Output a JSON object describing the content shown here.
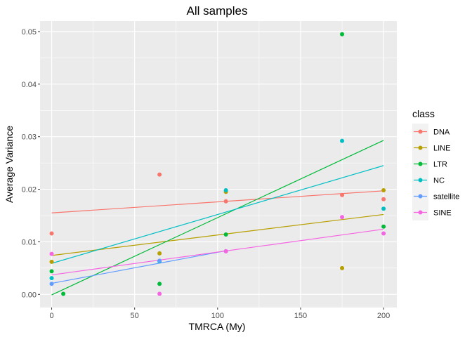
{
  "chart_data": {
    "type": "scatter",
    "title": "All samples",
    "xlabel": "TMRCA (My)",
    "ylabel": "Average Variance",
    "xlim": [
      -7,
      208
    ],
    "ylim": [
      -0.0025,
      0.052
    ],
    "x_ticks": [
      0,
      50,
      100,
      150,
      200
    ],
    "x_tick_labels": [
      "0",
      "50",
      "100",
      "150",
      "200"
    ],
    "y_ticks": [
      0.0,
      0.01,
      0.02,
      0.03,
      0.04,
      0.05
    ],
    "y_tick_labels": [
      "0.00",
      "0.01",
      "0.02",
      "0.03",
      "0.04",
      "0.05"
    ],
    "grid": true,
    "legend": {
      "title": "class",
      "position": "right"
    },
    "series": [
      {
        "name": "DNA",
        "color": "#F8766D",
        "points": [
          [
            0,
            0.0116
          ],
          [
            65,
            0.0228
          ],
          [
            105,
            0.0177
          ],
          [
            175,
            0.0189
          ],
          [
            200,
            0.0181
          ]
        ],
        "trend": [
          [
            0,
            0.0155
          ],
          [
            200,
            0.0197
          ]
        ]
      },
      {
        "name": "LINE",
        "color": "#B79F00",
        "points": [
          [
            0,
            0.0062
          ],
          [
            65,
            0.0078
          ],
          [
            105,
            0.0195
          ],
          [
            175,
            0.005
          ],
          [
            200,
            0.0198
          ]
        ],
        "trend": [
          [
            0,
            0.0074
          ],
          [
            200,
            0.0152
          ]
        ]
      },
      {
        "name": "LTR",
        "color": "#00BA38",
        "points": [
          [
            0,
            0.0044
          ],
          [
            7,
            0.0001
          ],
          [
            65,
            0.002
          ],
          [
            105,
            0.0114
          ],
          [
            175,
            0.0495
          ],
          [
            200,
            0.0129
          ]
        ],
        "trend": [
          [
            0,
            -0.0001
          ],
          [
            200,
            0.0293
          ]
        ]
      },
      {
        "name": "NC",
        "color": "#00BFC4",
        "points": [
          [
            0,
            0.0031
          ],
          [
            65,
            0.0063
          ],
          [
            105,
            0.0198
          ],
          [
            175,
            0.0292
          ],
          [
            200,
            0.0163
          ]
        ],
        "trend": [
          [
            0,
            0.0059
          ],
          [
            200,
            0.0245
          ]
        ]
      },
      {
        "name": "satellite",
        "color": "#619CFF",
        "points": [
          [
            0,
            0.002
          ],
          [
            65,
            0.0064
          ],
          [
            105,
            0.0082
          ]
        ],
        "trend": [
          [
            0,
            0.0021
          ],
          [
            105,
            0.0083
          ]
        ]
      },
      {
        "name": "SINE",
        "color": "#F564E3",
        "points": [
          [
            0,
            0.0077
          ],
          [
            65,
            0.0001
          ],
          [
            105,
            0.0082
          ],
          [
            175,
            0.0147
          ],
          [
            200,
            0.0116
          ]
        ],
        "trend": [
          [
            0,
            0.0037
          ],
          [
            200,
            0.0124
          ]
        ]
      }
    ]
  }
}
